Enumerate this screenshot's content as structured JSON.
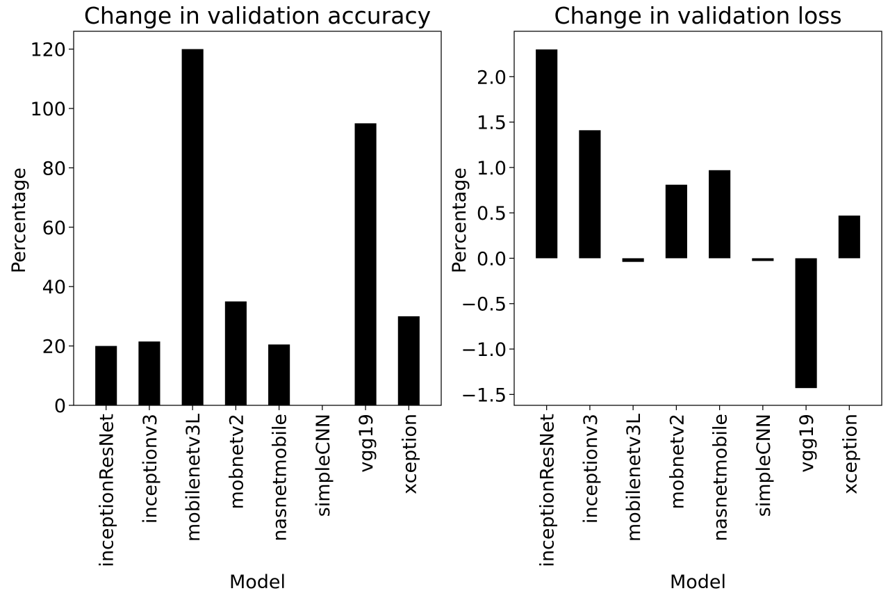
{
  "chart_data": [
    {
      "type": "bar",
      "title": "Change in validation accuracy",
      "xlabel": "Model",
      "ylabel": "Percentage",
      "categories": [
        "inceptionResNet",
        "inceptionv3",
        "mobilenetv3L",
        "mobnetv2",
        "nasnetmobile",
        "simpleCNN",
        "vgg19",
        "xception"
      ],
      "values": [
        20.0,
        21.5,
        120.0,
        35.0,
        20.5,
        0.0,
        95.0,
        30.0
      ],
      "ylim": [
        0,
        126
      ],
      "yticks": [
        0,
        20,
        40,
        60,
        80,
        100,
        120
      ],
      "ytick_labels": [
        "0",
        "20",
        "40",
        "60",
        "80",
        "100",
        "120"
      ],
      "bar_color": "#000000",
      "grid": false,
      "legend": false
    },
    {
      "type": "bar",
      "title": "Change in validation loss",
      "xlabel": "Model",
      "ylabel": "Percentage",
      "categories": [
        "inceptionResNet",
        "inceptionv3",
        "mobilenetv3L",
        "mobnetv2",
        "nasnetmobile",
        "simpleCNN",
        "vgg19",
        "xception"
      ],
      "values": [
        2.3,
        1.41,
        -0.04,
        0.81,
        0.97,
        -0.03,
        -1.43,
        0.47
      ],
      "ylim": [
        -1.62,
        2.5
      ],
      "yticks": [
        -1.5,
        -1.0,
        -0.5,
        0.0,
        0.5,
        1.0,
        1.5,
        2.0
      ],
      "ytick_labels": [
        "−1.5",
        "−1.0",
        "−0.5",
        "0.0",
        "0.5",
        "1.0",
        "1.5",
        "2.0"
      ],
      "bar_color": "#000000",
      "grid": false,
      "legend": false
    }
  ]
}
